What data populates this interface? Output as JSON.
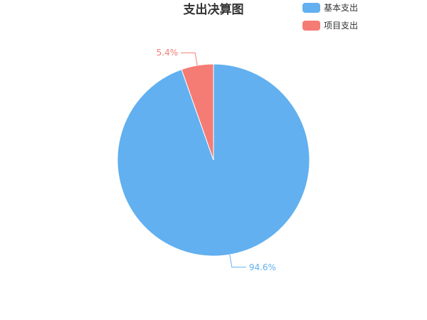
{
  "chart_data": {
    "type": "pie",
    "title": "支出决算图",
    "categories": [
      "基本支出",
      "项目支出"
    ],
    "values": [
      94.6,
      5.4
    ],
    "value_labels": [
      "94.6%",
      "5.4%"
    ],
    "colors": [
      "#62b0ef",
      "#f47c75"
    ],
    "legend_placement": "top-right"
  }
}
